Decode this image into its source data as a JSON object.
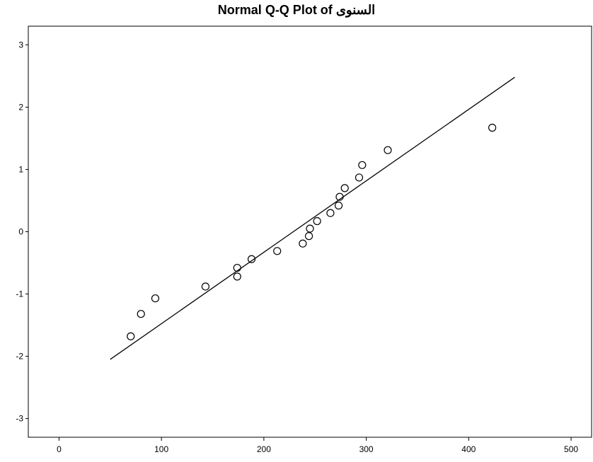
{
  "chart_data": {
    "type": "scatter",
    "title": "Normal Q-Q Plot of السنوى",
    "xlabel": "",
    "ylabel": "",
    "xlim": [
      -30,
      520
    ],
    "ylim": [
      -3.3,
      3.3
    ],
    "x_ticks": [
      0,
      100,
      200,
      300,
      400,
      500
    ],
    "y_ticks": [
      3,
      2,
      1,
      0,
      -1,
      -2,
      -3
    ],
    "x_tick_labels": [
      "0",
      "100",
      "200",
      "300",
      "400",
      "500"
    ],
    "y_tick_labels": [
      "3",
      "2",
      "1",
      "0",
      "-1",
      "-2",
      "-3"
    ],
    "grid": false,
    "reference_line": {
      "x": [
        50,
        445
      ],
      "y": [
        -2.05,
        2.48
      ]
    },
    "points": [
      {
        "x": 70,
        "y": -1.68
      },
      {
        "x": 80,
        "y": -1.32
      },
      {
        "x": 94,
        "y": -1.07
      },
      {
        "x": 143,
        "y": -0.88
      },
      {
        "x": 174,
        "y": -0.72
      },
      {
        "x": 174,
        "y": -0.58
      },
      {
        "x": 188,
        "y": -0.44
      },
      {
        "x": 213,
        "y": -0.31
      },
      {
        "x": 238,
        "y": -0.19
      },
      {
        "x": 244,
        "y": -0.07
      },
      {
        "x": 245,
        "y": 0.05
      },
      {
        "x": 252,
        "y": 0.17
      },
      {
        "x": 265,
        "y": 0.3
      },
      {
        "x": 273,
        "y": 0.42
      },
      {
        "x": 274,
        "y": 0.56
      },
      {
        "x": 279,
        "y": 0.7
      },
      {
        "x": 293,
        "y": 0.87
      },
      {
        "x": 296,
        "y": 1.07
      },
      {
        "x": 321,
        "y": 1.31
      },
      {
        "x": 423,
        "y": 1.67
      }
    ]
  }
}
